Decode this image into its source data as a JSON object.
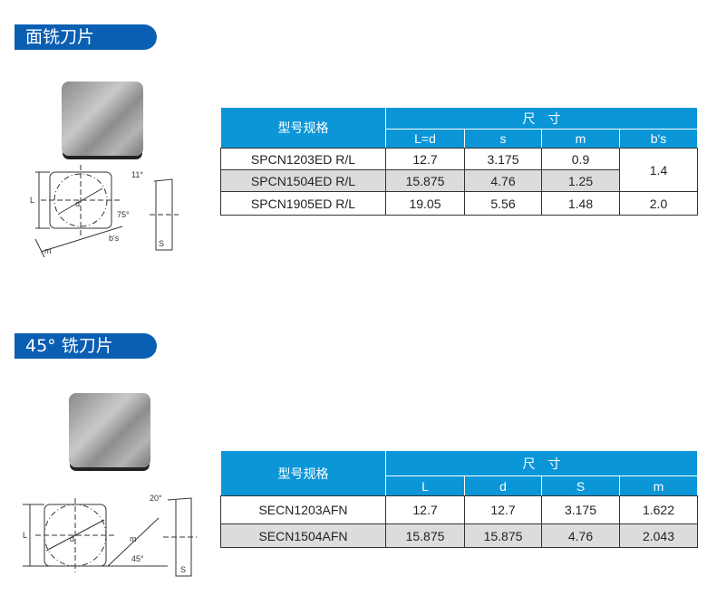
{
  "section1": {
    "title": "面铣刀片",
    "table": {
      "col_model": "型号规格",
      "col_group": "尺　寸",
      "sub_headers": [
        "L=d",
        "s",
        "m",
        "b's"
      ],
      "rows": [
        {
          "model": "SPCN1203ED  R/L",
          "values": [
            "12.7",
            "3.175",
            "0.9"
          ]
        },
        {
          "model": "SPCN1504ED  R/L",
          "values": [
            "15.875",
            "4.76",
            "1.25"
          ]
        },
        {
          "model": "SPCN1905ED  R/L",
          "values": [
            "19.05",
            "5.56",
            "1.48"
          ]
        }
      ],
      "bs_values": [
        "1.4",
        "2.0"
      ]
    },
    "diagram": {
      "angle_side": "11°",
      "angle_chamfer": "75°",
      "label_d": "d",
      "label_L": "L",
      "label_m": "m",
      "label_bs": "b's",
      "label_s": "S"
    }
  },
  "section2": {
    "title": "45°  铣刀片",
    "table": {
      "col_model": "型号规格",
      "col_group": "尺　寸",
      "sub_headers": [
        "L",
        "d",
        "S",
        "m"
      ],
      "rows": [
        {
          "model": "SECN1203AFN",
          "values": [
            "12.7",
            "12.7",
            "3.175",
            "1.622"
          ]
        },
        {
          "model": "SECN1504AFN",
          "values": [
            "15.875",
            "15.875",
            "4.76",
            "2.043"
          ]
        }
      ]
    },
    "diagram": {
      "angle_side": "20°",
      "angle_chamfer": "45°",
      "label_d": "d",
      "label_L": "L",
      "label_m": "m",
      "label_s": "S"
    }
  }
}
